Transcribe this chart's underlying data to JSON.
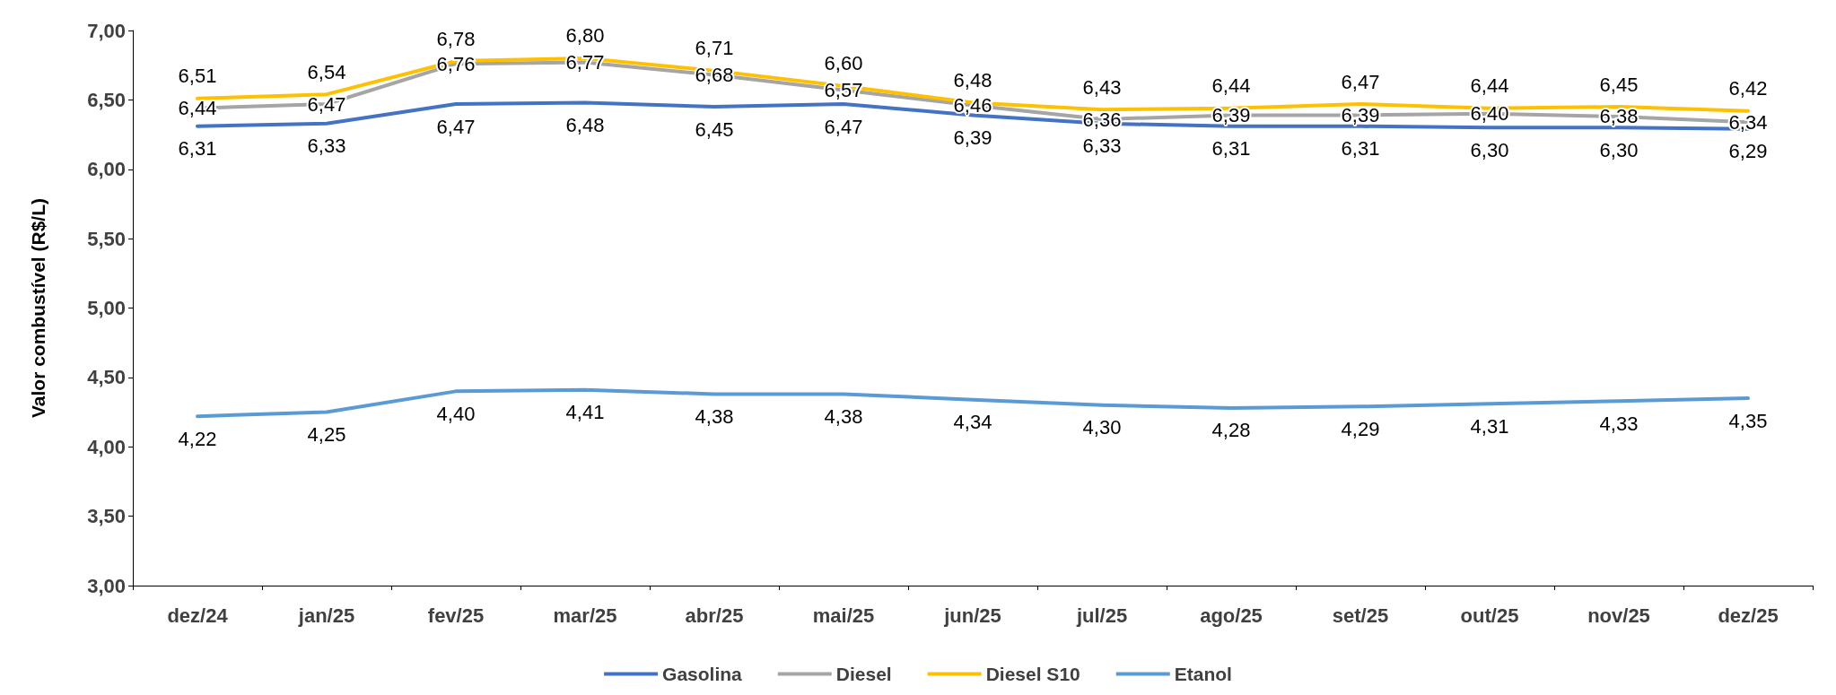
{
  "chart_data": {
    "type": "line",
    "ylabel": "Valor combustível (R$/L)",
    "categories": [
      "dez/24",
      "jan/25",
      "fev/25",
      "mar/25",
      "abr/25",
      "mai/25",
      "jun/25",
      "jul/25",
      "ago/25",
      "set/25",
      "out/25",
      "nov/25",
      "dez/25"
    ],
    "ylim": [
      3,
      7
    ],
    "yticks": [
      {
        "value": 3,
        "label": "3,00"
      },
      {
        "value": 3.5,
        "label": "3,50"
      },
      {
        "value": 4,
        "label": "4,00"
      },
      {
        "value": 4.5,
        "label": "4,50"
      },
      {
        "value": 5,
        "label": "5,00"
      },
      {
        "value": 5.5,
        "label": "5,50"
      },
      {
        "value": 6,
        "label": "6,00"
      },
      {
        "value": 6.5,
        "label": "6,50"
      },
      {
        "value": 7,
        "label": "7,00"
      }
    ],
    "grid": false,
    "legend": "bottom",
    "marker": "none",
    "line_style": "solid",
    "series": [
      {
        "name": "Gasolina",
        "color": "#4472c4",
        "values": [
          6.31,
          6.33,
          6.47,
          6.48,
          6.45,
          6.47,
          6.39,
          6.33,
          6.31,
          6.31,
          6.3,
          6.3,
          6.29
        ],
        "value_labels": [
          "6,31",
          "6,33",
          "6,47",
          "6,48",
          "6,45",
          "6,47",
          "6,39",
          "6,33",
          "6,31",
          "6,31",
          "6,30",
          "6,30",
          "6,29"
        ]
      },
      {
        "name": "Diesel",
        "color": "#a5a5a5",
        "values": [
          6.44,
          6.47,
          6.76,
          6.77,
          6.68,
          6.57,
          6.46,
          6.36,
          6.39,
          6.39,
          6.4,
          6.38,
          6.34
        ],
        "value_labels": [
          "6,44",
          "6,47",
          "6,76",
          "6,77",
          "6,68",
          "6,57",
          "6,46",
          "6,36",
          "6,39",
          "6,39",
          "6,40",
          "6,38",
          "6,34"
        ]
      },
      {
        "name": "Diesel S10",
        "color": "#ffc000",
        "values": [
          6.51,
          6.54,
          6.78,
          6.8,
          6.71,
          6.6,
          6.48,
          6.43,
          6.44,
          6.47,
          6.44,
          6.45,
          6.42
        ],
        "value_labels": [
          "6,51",
          "6,54",
          "6,78",
          "6,80",
          "6,71",
          "6,60",
          "6,48",
          "6,43",
          "6,44",
          "6,47",
          "6,44",
          "6,45",
          "6,42"
        ]
      },
      {
        "name": "Etanol",
        "color": "#5b9bd5",
        "values": [
          4.22,
          4.25,
          4.4,
          4.41,
          4.38,
          4.38,
          4.34,
          4.3,
          4.28,
          4.29,
          4.31,
          4.33,
          4.35
        ],
        "value_labels": [
          "4,22",
          "4,25",
          "4,40",
          "4,41",
          "4,38",
          "4,38",
          "4,34",
          "4,30",
          "4,28",
          "4,29",
          "4,31",
          "4,33",
          "4,35"
        ]
      }
    ]
  }
}
